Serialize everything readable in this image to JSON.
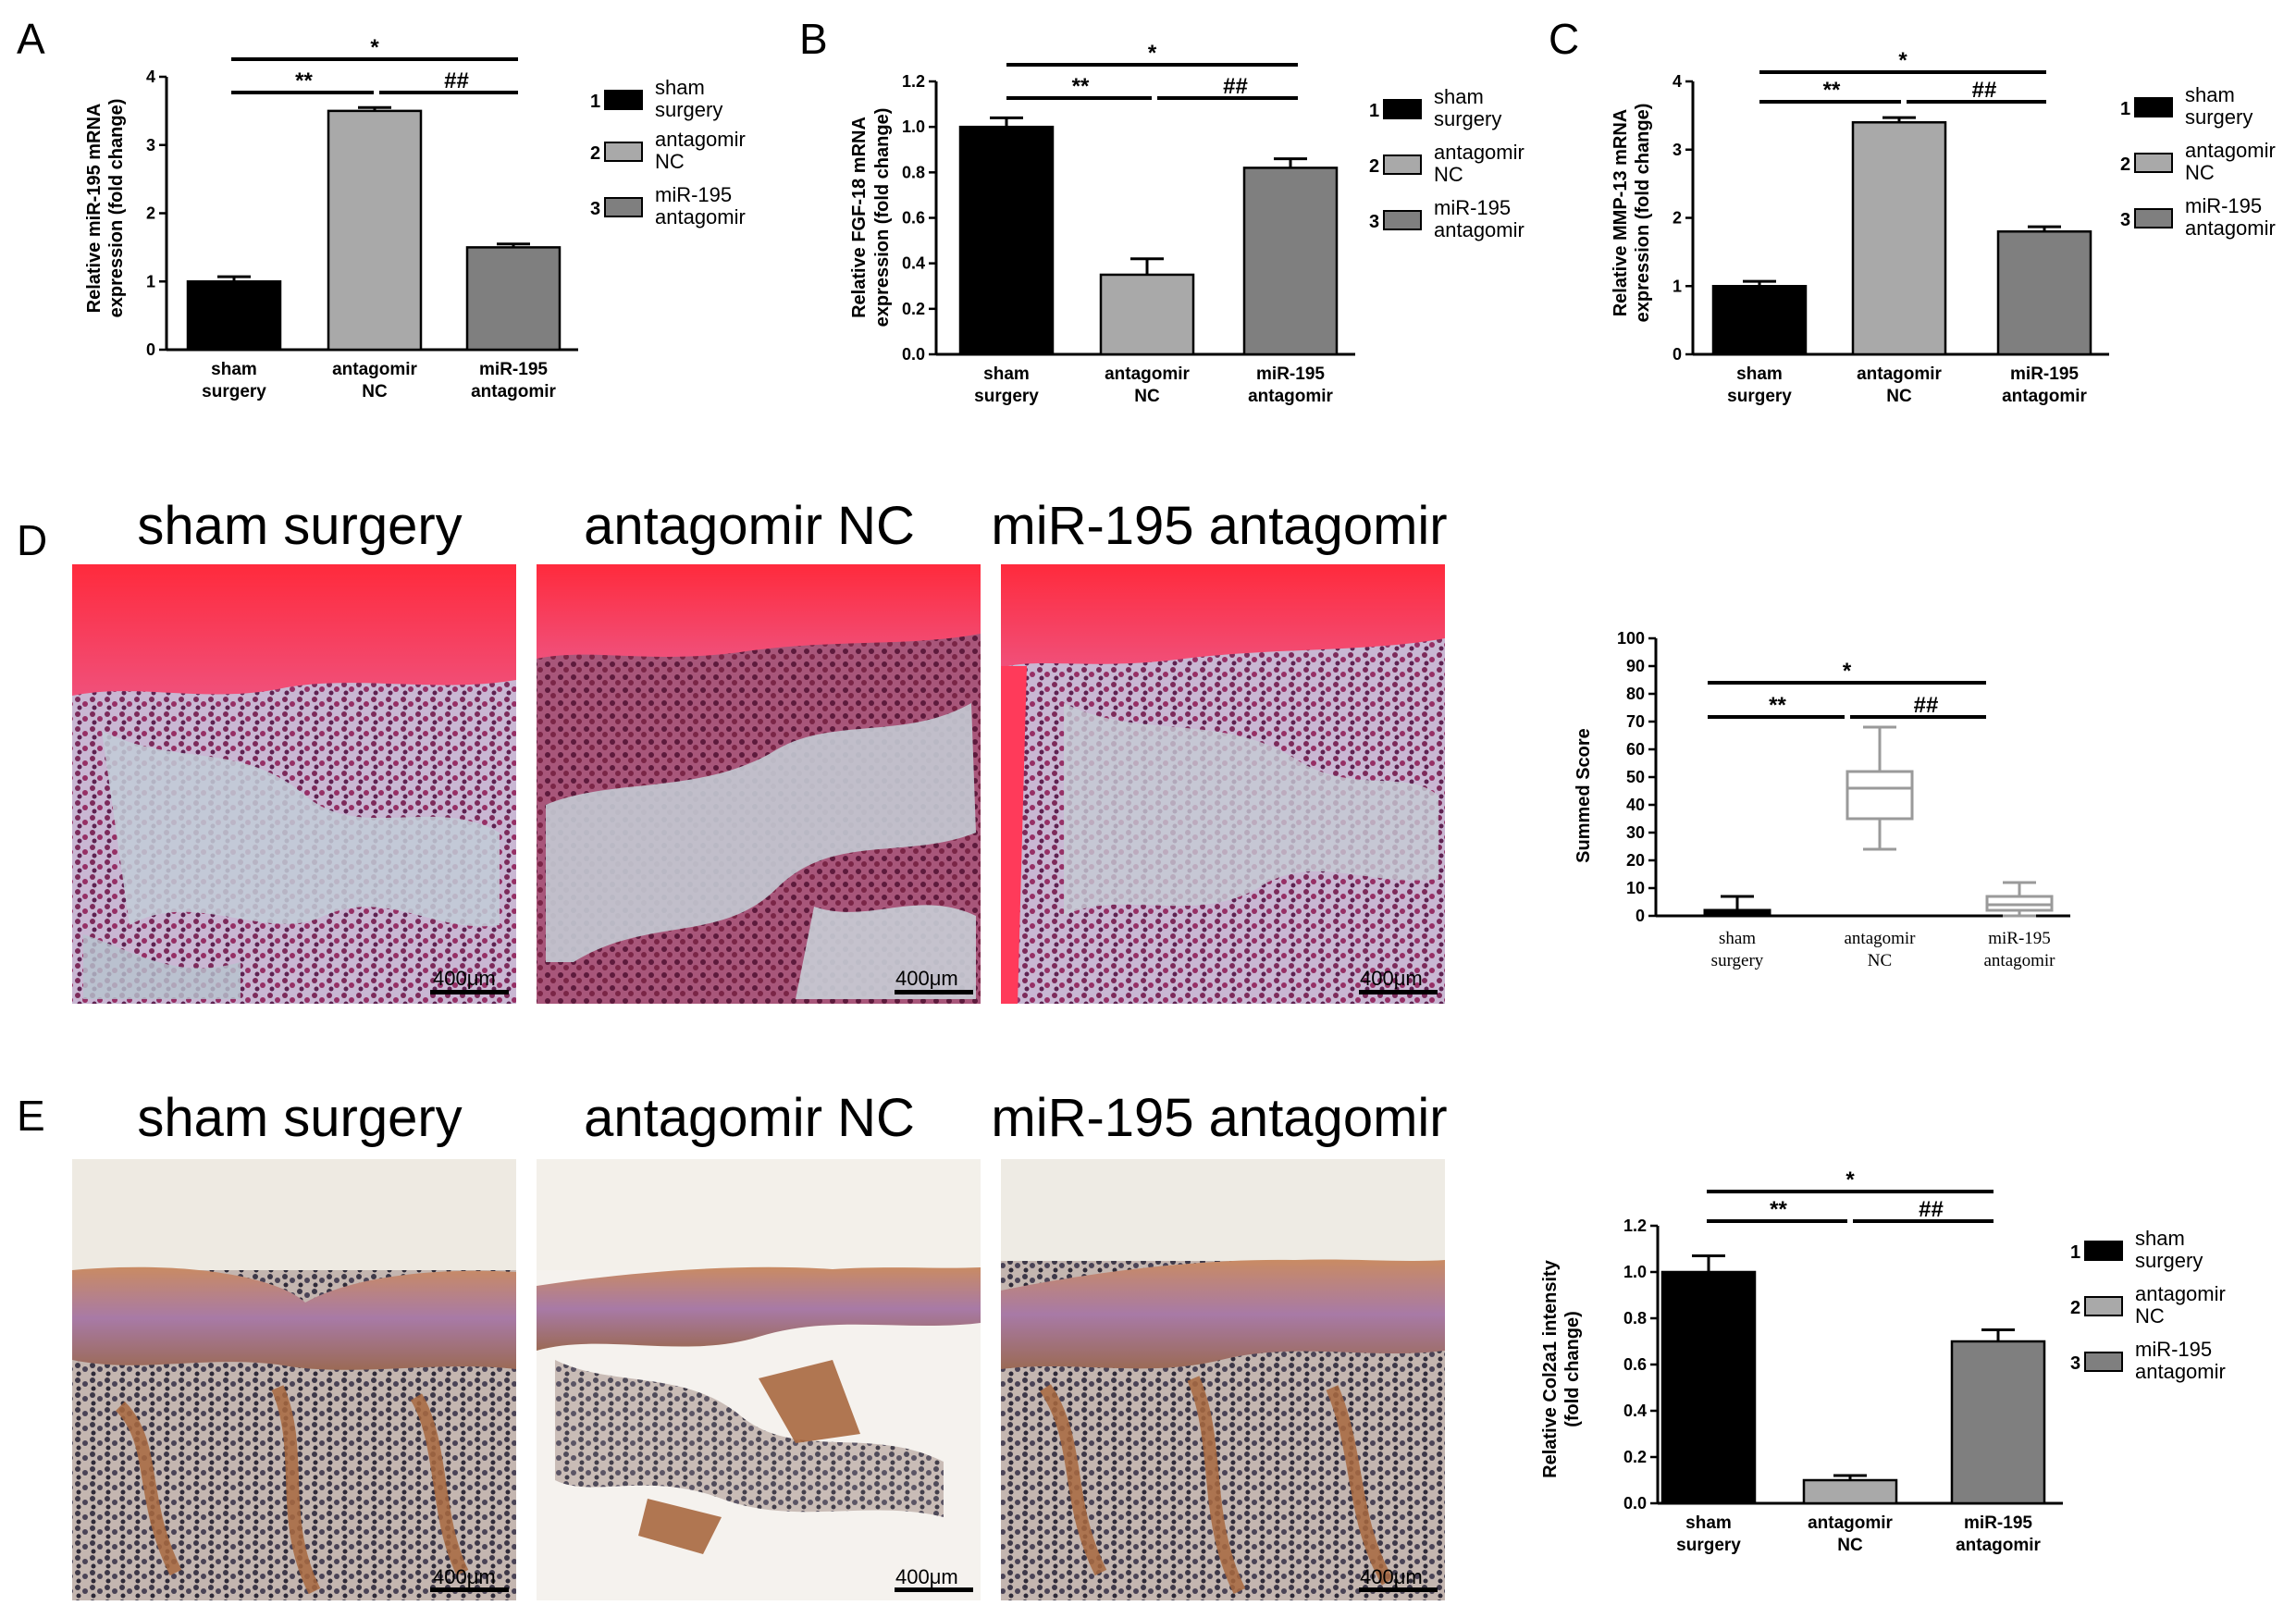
{
  "panel_letters": [
    "A",
    "B",
    "C",
    "D",
    "E"
  ],
  "column_titles": [
    "sham surgery",
    "antagomir NC",
    "miR-195 antagomir"
  ],
  "scale_bar_label": "400μm",
  "colors": {
    "sham": "#000000",
    "nc": "#a9a9a9",
    "antagomir": "#7f7f7f",
    "box_nc": "#9a9a9a"
  },
  "legend": [
    {
      "num": "1",
      "lines": [
        "sham",
        "surgery"
      ]
    },
    {
      "num": "2",
      "lines": [
        "antagomir",
        "NC"
      ]
    },
    {
      "num": "3",
      "lines": [
        "miR-195",
        "antagomir"
      ]
    }
  ],
  "significance": {
    "star": "*",
    "double_star": "**",
    "hash": "##"
  },
  "chart_data": [
    {
      "panel": "A",
      "type": "bar",
      "categories": [
        [
          "sham",
          "surgery"
        ],
        [
          "antagomir",
          "NC"
        ],
        [
          "miR-195",
          "antagomir"
        ]
      ],
      "values": [
        1.0,
        3.5,
        1.5
      ],
      "errors": [
        0.07,
        0.05,
        0.05
      ],
      "ylabel": [
        "Relative miR-195 mRNA",
        "expression (fold change)"
      ],
      "ylim": [
        0,
        4
      ],
      "ticks": [
        0,
        1,
        2,
        3,
        4
      ],
      "tick_labels": [
        "0",
        "1",
        "2",
        "3",
        "4"
      ]
    },
    {
      "panel": "B",
      "type": "bar",
      "categories": [
        [
          "sham",
          "surgery"
        ],
        [
          "antagomir",
          "NC"
        ],
        [
          "miR-195",
          "antagomir"
        ]
      ],
      "values": [
        1.0,
        0.35,
        0.82
      ],
      "errors": [
        0.04,
        0.07,
        0.04
      ],
      "ylabel": [
        "Relative FGF-18 mRNA",
        "expression (fold change)"
      ],
      "ylim": [
        0,
        1.2
      ],
      "ticks": [
        0,
        0.2,
        0.4,
        0.6,
        0.8,
        1.0,
        1.2
      ],
      "tick_labels": [
        "0.0",
        "0.2",
        "0.4",
        "0.6",
        "0.8",
        "1.0",
        "1.2"
      ]
    },
    {
      "panel": "C",
      "type": "bar",
      "categories": [
        [
          "sham",
          "surgery"
        ],
        [
          "antagomir",
          "NC"
        ],
        [
          "miR-195",
          "antagomir"
        ]
      ],
      "values": [
        1.0,
        3.4,
        1.8
      ],
      "errors": [
        0.07,
        0.07,
        0.07
      ],
      "ylabel": [
        "Relative MMP-13 mRNA",
        "expression (fold change)"
      ],
      "ylim": [
        0,
        4
      ],
      "ticks": [
        0,
        1,
        2,
        3,
        4
      ],
      "tick_labels": [
        "0",
        "1",
        "2",
        "3",
        "4"
      ]
    },
    {
      "panel": "D",
      "type": "box",
      "categories": [
        [
          "sham",
          "surgery"
        ],
        [
          "antagomir",
          "NC"
        ],
        [
          "miR-195",
          "antagomir"
        ]
      ],
      "boxes": [
        {
          "min": 0,
          "q1": 0,
          "median": 1,
          "q3": 2,
          "max": 7
        },
        {
          "min": 24,
          "q1": 35,
          "median": 46,
          "q3": 52,
          "max": 68
        },
        {
          "min": 0,
          "q1": 2,
          "median": 4,
          "q3": 7,
          "max": 12
        }
      ],
      "ylabel": [
        "Summed Score"
      ],
      "ylim": [
        0,
        100
      ],
      "ticks": [
        0,
        10,
        20,
        30,
        40,
        50,
        60,
        70,
        80,
        90,
        100
      ],
      "tick_labels": [
        "0",
        "10",
        "20",
        "30",
        "40",
        "50",
        "60",
        "70",
        "80",
        "90",
        "100"
      ]
    },
    {
      "panel": "E",
      "type": "bar",
      "categories": [
        [
          "sham",
          "surgery"
        ],
        [
          "antagomir",
          "NC"
        ],
        [
          "miR-195",
          "antagomir"
        ]
      ],
      "values": [
        1.0,
        0.1,
        0.7
      ],
      "errors": [
        0.07,
        0.02,
        0.05
      ],
      "ylabel": [
        "Relative Col2a1  intensity",
        "(fold change)"
      ],
      "ylim": [
        0,
        1.2
      ],
      "ticks": [
        0,
        0.2,
        0.4,
        0.6,
        0.8,
        1.0,
        1.2
      ],
      "tick_labels": [
        "0.0",
        "0.2",
        "0.4",
        "0.6",
        "0.8",
        "1.0",
        "1.2"
      ]
    }
  ]
}
